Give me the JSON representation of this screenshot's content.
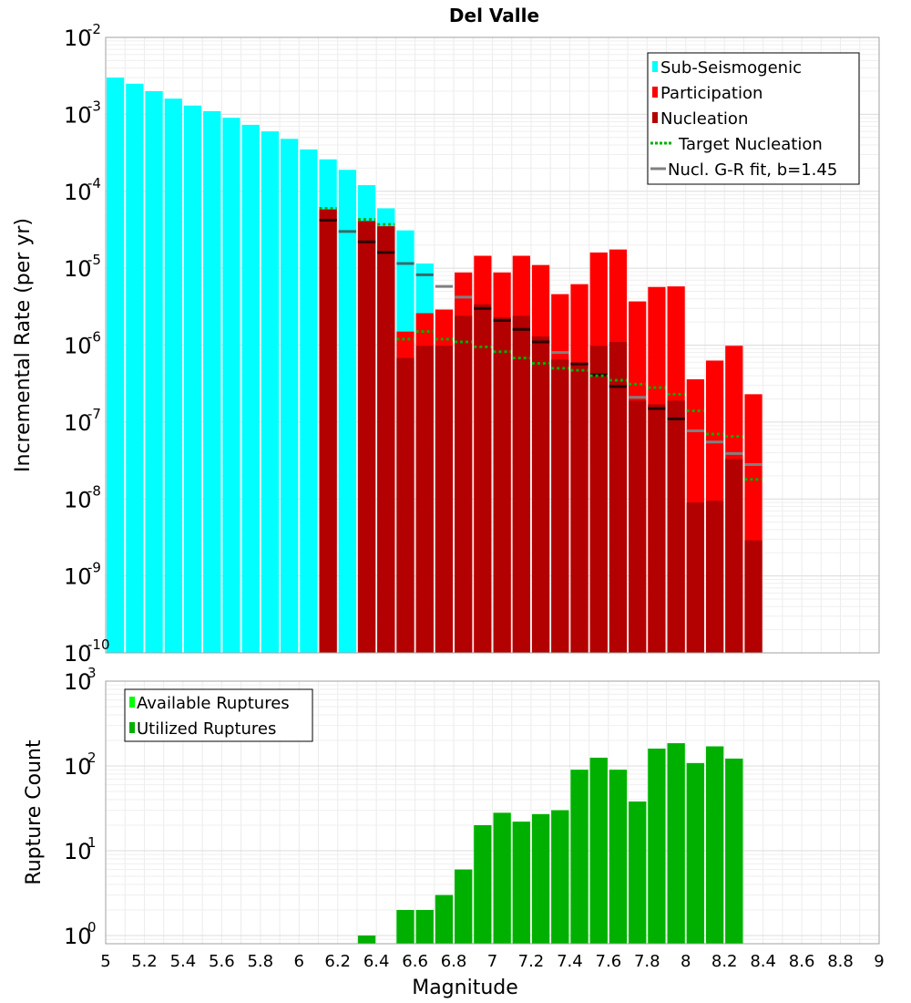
{
  "chart_data": [
    {
      "type": "bar",
      "title": "Del Valle",
      "ylabel": "Incremental Rate (per yr)",
      "xlabel": "",
      "xlim": [
        5,
        9
      ],
      "ylim": [
        1e-10,
        0.01
      ],
      "yscale": "log",
      "grid": true,
      "legend_position": "top-right",
      "x": [
        5.05,
        5.15,
        5.25,
        5.35,
        5.45,
        5.55,
        5.65,
        5.75,
        5.85,
        5.95,
        6.05,
        6.15,
        6.25,
        6.35,
        6.45,
        6.55,
        6.65,
        6.75,
        6.85,
        6.95,
        7.05,
        7.15,
        7.25,
        7.35,
        7.45,
        7.55,
        7.65,
        7.75,
        7.85,
        7.95,
        8.05,
        8.15,
        8.25,
        8.35
      ],
      "y_tick_labels": [
        {
          "base": "10",
          "exp": "-10",
          "value": 1e-10
        },
        {
          "base": "10",
          "exp": "-9",
          "value": 1e-09
        },
        {
          "base": "10",
          "exp": "-8",
          "value": 1e-08
        },
        {
          "base": "10",
          "exp": "-7",
          "value": 1e-07
        },
        {
          "base": "10",
          "exp": "-6",
          "value": 1e-06
        },
        {
          "base": "10",
          "exp": "-5",
          "value": 1e-05
        },
        {
          "base": "10",
          "exp": "-4",
          "value": 0.0001
        },
        {
          "base": "10",
          "exp": "-3",
          "value": 0.001
        },
        {
          "base": "10",
          "exp": "-2",
          "value": 0.01
        }
      ],
      "series": [
        {
          "name": "Sub-Seismogenic",
          "color": "#00ffff",
          "kind": "bar",
          "values": [
            0.003,
            0.0025,
            0.002,
            0.0016,
            0.0013,
            0.0011,
            0.0009,
            0.00073,
            0.0006,
            0.00048,
            0.00035,
            0.00026,
            0.00019,
            0.00012,
            6e-05,
            3.1e-05,
            1.15e-05,
            null,
            null,
            null,
            null,
            null,
            null,
            null,
            null,
            null,
            null,
            null,
            null,
            null,
            null,
            null,
            null,
            null
          ]
        },
        {
          "name": "Participation",
          "color": "#ff0000",
          "kind": "bar",
          "values": [
            null,
            null,
            null,
            null,
            null,
            null,
            null,
            null,
            null,
            null,
            null,
            5.8e-05,
            null,
            4.1e-05,
            3.5e-05,
            1.5e-06,
            2.6e-06,
            2.9e-06,
            8.8e-06,
            1.45e-05,
            8.8e-06,
            1.45e-05,
            1.1e-05,
            4.6e-06,
            6.2e-06,
            1.6e-05,
            1.75e-05,
            3.7e-06,
            5.7e-06,
            5.8e-06,
            3.6e-07,
            6.3e-07,
            9.8e-07,
            2.3e-07
          ]
        },
        {
          "name": "Nucleation",
          "color": "#b30000",
          "kind": "bar",
          "values": [
            null,
            null,
            null,
            null,
            null,
            null,
            null,
            null,
            null,
            null,
            null,
            5.8e-05,
            null,
            4.1e-05,
            3.5e-05,
            6.8e-07,
            9.8e-07,
            9.8e-07,
            2.4e-06,
            3.4e-06,
            2.3e-06,
            2.4e-06,
            1.3e-06,
            6.5e-07,
            5.8e-07,
            9.8e-07,
            1.1e-06,
            1.9e-07,
            1.7e-07,
            1.9e-07,
            9e-09,
            9.5e-09,
            3.3e-08,
            2.9e-09
          ]
        },
        {
          "name": "Target Nucleation",
          "color": "#00b000",
          "kind": "dotted-step",
          "values": [
            null,
            null,
            null,
            null,
            null,
            null,
            null,
            null,
            null,
            null,
            null,
            6e-05,
            null,
            4.3e-05,
            3.7e-05,
            1.2e-06,
            1.5e-06,
            1.2e-06,
            1.1e-06,
            9.5e-07,
            8.2e-07,
            6.8e-07,
            5.8e-07,
            5e-07,
            4.7e-07,
            4e-07,
            3.5e-07,
            3.1e-07,
            2.8e-07,
            2.3e-07,
            1.4e-07,
            7e-08,
            6.5e-08,
            1.8e-08
          ]
        },
        {
          "name": "Nucl. G-R fit, b=1.45",
          "color": "#808080",
          "kind": "step",
          "values": [
            null,
            null,
            null,
            null,
            null,
            null,
            null,
            null,
            null,
            null,
            null,
            4.2e-05,
            3e-05,
            2.2e-05,
            1.6e-05,
            1.15e-05,
            8.2e-06,
            5.8e-06,
            4.2e-06,
            3e-06,
            2.1e-06,
            1.6e-06,
            1.1e-06,
            8e-07,
            5.7e-07,
            4.1e-07,
            2.9e-07,
            2.1e-07,
            1.5e-07,
            1.1e-07,
            7.7e-08,
            5.5e-08,
            3.9e-08,
            2.8e-08
          ]
        }
      ]
    },
    {
      "type": "bar",
      "title": "",
      "xlabel": "Magnitude",
      "ylabel": "Rupture Count",
      "xlim": [
        5,
        9
      ],
      "ylim": [
        0.8,
        1000
      ],
      "yscale": "log",
      "grid": true,
      "legend_position": "top-left",
      "x_tick_labels": [
        "5",
        "5.2",
        "5.4",
        "5.6",
        "5.8",
        "6",
        "6.2",
        "6.4",
        "6.6",
        "6.8",
        "7",
        "7.2",
        "7.4",
        "7.6",
        "7.8",
        "8",
        "8.2",
        "8.4",
        "8.6",
        "8.8",
        "9"
      ],
      "x": [
        6.35,
        6.55,
        6.65,
        6.75,
        6.85,
        6.95,
        7.05,
        7.15,
        7.25,
        7.35,
        7.45,
        7.55,
        7.65,
        7.75,
        7.85,
        7.95,
        8.05,
        8.15,
        8.25
      ],
      "y_tick_labels": [
        {
          "base": "10",
          "exp": "0",
          "value": 1
        },
        {
          "base": "10",
          "exp": "1",
          "value": 10
        },
        {
          "base": "10",
          "exp": "2",
          "value": 100
        },
        {
          "base": "10",
          "exp": "3",
          "value": 1000
        }
      ],
      "series": [
        {
          "name": "Available Ruptures",
          "color": "#00ff00",
          "kind": "bar",
          "values": [
            1,
            2,
            2,
            3,
            6,
            20,
            28,
            22,
            27,
            30,
            90,
            125,
            90,
            38,
            160,
            185,
            108,
            170,
            122
          ]
        },
        {
          "name": "Utilized Ruptures",
          "color": "#00b000",
          "kind": "bar",
          "values": [
            1,
            2,
            2,
            3,
            6,
            20,
            28,
            22,
            27,
            30,
            90,
            125,
            90,
            38,
            160,
            185,
            108,
            170,
            122
          ]
        }
      ]
    }
  ]
}
